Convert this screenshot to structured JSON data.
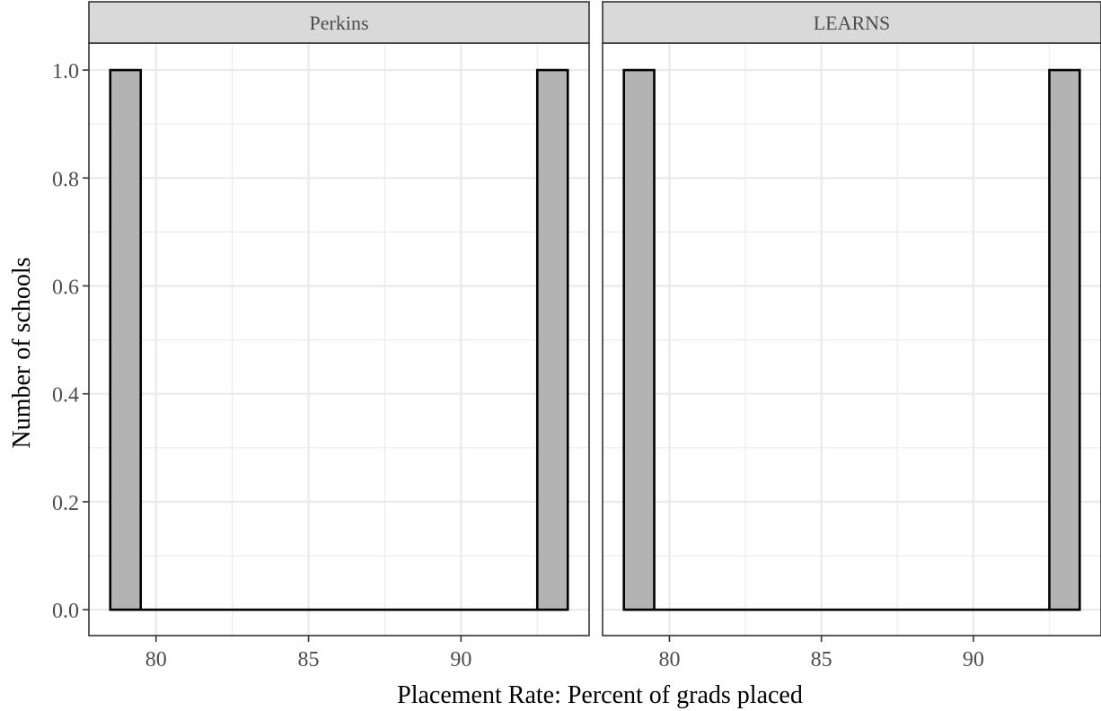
{
  "chart_data": {
    "type": "bar",
    "subtype": "histogram-faceted",
    "xlabel": "Placement Rate: Percent of grads placed",
    "ylabel": "Number of schools",
    "xlim": [
      77.8,
      94.2
    ],
    "ylim": [
      -0.048,
      1.05
    ],
    "x_ticks": [
      80,
      85,
      90
    ],
    "y_ticks": [
      0.0,
      0.2,
      0.4,
      0.6,
      0.8,
      1.0
    ],
    "x_tick_labels": [
      "80",
      "85",
      "90"
    ],
    "y_tick_labels": [
      "0.0",
      "0.2",
      "0.4",
      "0.6",
      "0.8",
      "1.0"
    ],
    "bin_width": 1,
    "grid": true,
    "bar_fill": "#b3b3b3",
    "bar_stroke": "#000000",
    "grid_color": "#ebebeb",
    "strip_fill": "#d9d9d9",
    "facets": [
      {
        "label": "Perkins",
        "bins": [
          {
            "x0": 78.5,
            "x1": 79.5,
            "count": 1
          },
          {
            "x0": 92.5,
            "x1": 93.5,
            "count": 1
          }
        ]
      },
      {
        "label": "LEARNS",
        "bins": [
          {
            "x0": 78.5,
            "x1": 79.5,
            "count": 1
          },
          {
            "x0": 92.5,
            "x1": 93.5,
            "count": 1
          }
        ]
      }
    ]
  }
}
